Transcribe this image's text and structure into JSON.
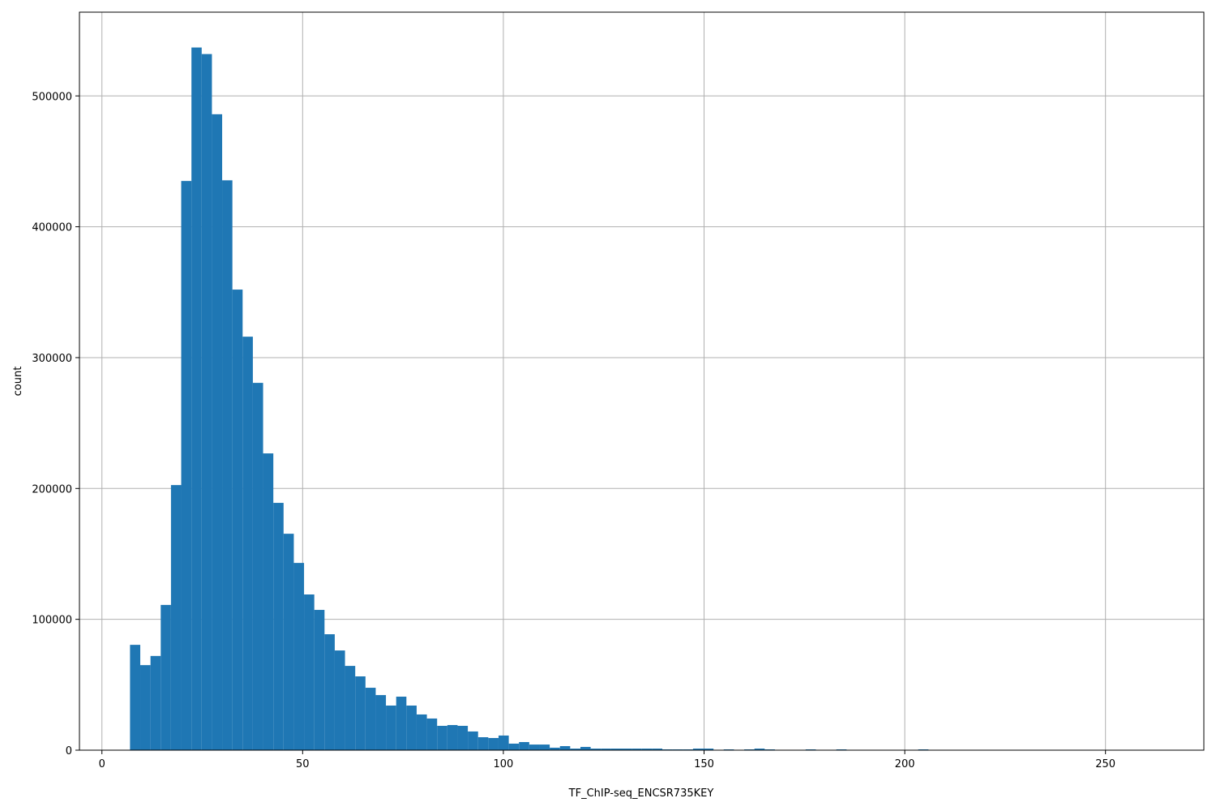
{
  "chart_data": {
    "type": "bar",
    "subtype": "histogram",
    "xlabel": "TF_ChIP-seq_ENCSR735KEY",
    "ylabel": "count",
    "xlim": [
      -5.6,
      274.5
    ],
    "ylim": [
      0,
      564000
    ],
    "grid": true,
    "color": "#1f77b4",
    "bin_start": 7.0,
    "bin_width": 2.55,
    "x_ticks": [
      0,
      50,
      100,
      150,
      200,
      250
    ],
    "y_ticks": [
      0,
      100000,
      200000,
      300000,
      400000,
      500000
    ],
    "values": [
      80500,
      65000,
      72000,
      111000,
      202600,
      435000,
      537000,
      532000,
      486000,
      435500,
      352000,
      316000,
      280700,
      226800,
      189000,
      165400,
      143100,
      119000,
      107200,
      88600,
      76200,
      64400,
      56400,
      47700,
      42100,
      34100,
      40900,
      34100,
      27300,
      24200,
      18600,
      19200,
      18600,
      14300,
      9900,
      9300,
      11200,
      5000,
      6200,
      4300,
      4300,
      1900,
      3100,
      1200,
      2500,
      1200,
      1200,
      1200,
      1200,
      1200,
      1200,
      1200,
      600,
      600,
      600,
      1200,
      1200,
      0,
      600,
      0,
      600,
      1200,
      600,
      0,
      0,
      0,
      600,
      0,
      0,
      600,
      0,
      0,
      0,
      0,
      0,
      0,
      0,
      600,
      0,
      0,
      0,
      0,
      0,
      0,
      0,
      0,
      0,
      0,
      0,
      0,
      0,
      0,
      0,
      0,
      0,
      0,
      0,
      0,
      0,
      0
    ]
  }
}
